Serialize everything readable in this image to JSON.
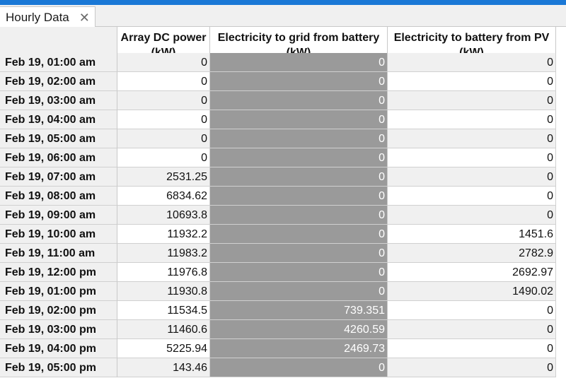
{
  "tab": {
    "title": "Hourly Data",
    "close_glyph": "✕"
  },
  "table": {
    "columns": [
      {
        "line1": "Array DC power",
        "line2": "(kW)"
      },
      {
        "line1": "Electricity to grid from battery",
        "line2": "(kW)"
      },
      {
        "line1": "Electricity to battery from PV",
        "line2": "(kW)"
      }
    ],
    "rows": [
      {
        "time": "Feb 19, 01:00 am",
        "v1": "0",
        "v2": "0",
        "v3": "0"
      },
      {
        "time": "Feb 19, 02:00 am",
        "v1": "0",
        "v2": "0",
        "v3": "0"
      },
      {
        "time": "Feb 19, 03:00 am",
        "v1": "0",
        "v2": "0",
        "v3": "0"
      },
      {
        "time": "Feb 19, 04:00 am",
        "v1": "0",
        "v2": "0",
        "v3": "0"
      },
      {
        "time": "Feb 19, 05:00 am",
        "v1": "0",
        "v2": "0",
        "v3": "0"
      },
      {
        "time": "Feb 19, 06:00 am",
        "v1": "0",
        "v2": "0",
        "v3": "0"
      },
      {
        "time": "Feb 19, 07:00 am",
        "v1": "2531.25",
        "v2": "0",
        "v3": "0"
      },
      {
        "time": "Feb 19, 08:00 am",
        "v1": "6834.62",
        "v2": "0",
        "v3": "0"
      },
      {
        "time": "Feb 19, 09:00 am",
        "v1": "10693.8",
        "v2": "0",
        "v3": "0"
      },
      {
        "time": "Feb 19, 10:00 am",
        "v1": "11932.2",
        "v2": "0",
        "v3": "1451.6"
      },
      {
        "time": "Feb 19, 11:00 am",
        "v1": "11983.2",
        "v2": "0",
        "v3": "2782.9"
      },
      {
        "time": "Feb 19, 12:00 pm",
        "v1": "11976.8",
        "v2": "0",
        "v3": "2692.97"
      },
      {
        "time": "Feb 19, 01:00 pm",
        "v1": "11930.8",
        "v2": "0",
        "v3": "1490.02"
      },
      {
        "time": "Feb 19, 02:00 pm",
        "v1": "11534.5",
        "v2": "739.351",
        "v3": "0"
      },
      {
        "time": "Feb 19, 03:00 pm",
        "v1": "11460.6",
        "v2": "4260.59",
        "v3": "0"
      },
      {
        "time": "Feb 19, 04:00 pm",
        "v1": "5225.94",
        "v2": "2469.73",
        "v3": "0"
      },
      {
        "time": "Feb 19, 05:00 pm",
        "v1": "143.46",
        "v2": "0",
        "v3": "0"
      }
    ]
  }
}
